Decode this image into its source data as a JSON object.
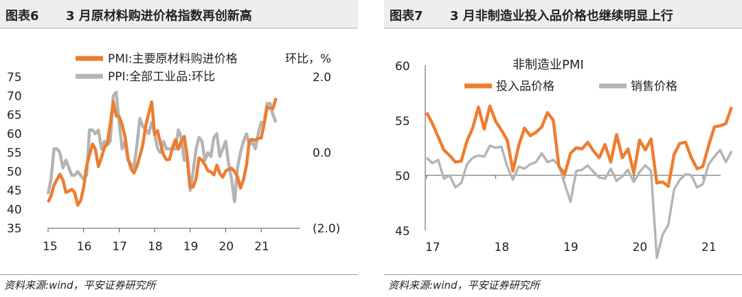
{
  "colors": {
    "orange": "#ED7D31",
    "gray": "#B4B4B4",
    "red_tick": "#E0201B",
    "axis": "#555555"
  },
  "left": {
    "fig_label": "图表6",
    "title": "3 月原材料购进价格指数再创新高",
    "source": "资料来源:wind，平安证券研究所"
  },
  "right": {
    "fig_label": "图表7",
    "title": "3 月非制造业投入品价格也继续明显上行",
    "source": "资料来源:wind，平安证券研究所"
  },
  "chart_data": [
    {
      "type": "line",
      "title": "",
      "ylabel_right": "环比，%",
      "legend_placement": "top",
      "ylim": [
        35,
        75
      ],
      "yticks": [
        "75",
        "70",
        "65",
        "60",
        "55",
        "50",
        "45",
        "40",
        "35"
      ],
      "y2lim": [
        -2.0,
        2.0
      ],
      "y2ticks": [
        "2.0",
        "0.0",
        "(2.0)"
      ],
      "x_tick_labels": [
        "15",
        "16",
        "17",
        "18",
        "19",
        "20",
        "21"
      ],
      "series": [
        {
          "name": "PMI:主要原材料购进价格",
          "axis": "left",
          "start": "2015-01",
          "values": [
            41.9,
            43.5,
            46.4,
            47.9,
            49.3,
            47.8,
            44.5,
            44.8,
            45.3,
            44.4,
            41.1,
            42.3,
            45.7,
            51.4,
            54.4,
            57.3,
            55.9,
            51.3,
            53.7,
            56.3,
            57.5,
            62.6,
            68.5,
            64.7,
            64.6,
            62.4,
            59.3,
            53.6,
            50.8,
            49.6,
            51.4,
            54.1,
            57.1,
            62.2,
            65.4,
            68.4,
            59.8,
            60.8,
            57.3,
            54.4,
            53.1,
            53.2,
            56.3,
            58.4,
            55.9,
            58.1,
            59.3,
            53.9,
            46.0,
            45.9,
            48.1,
            53.6,
            53.0,
            51.8,
            50.2,
            49.9,
            49.1,
            51.7,
            49.5,
            48.5,
            50.1,
            50.6,
            50.9,
            50.0,
            48.6,
            45.6,
            47.9,
            51.6,
            58.3,
            58.5,
            58.3,
            58.8,
            58.9,
            62.6,
            67.1,
            66.7,
            66.7,
            69.4
          ]
        },
        {
          "name": "PPI:全部工业品:环比",
          "axis": "right",
          "start": "2015-01",
          "values": [
            -1.1,
            -0.7,
            0.1,
            0.1,
            0.0,
            -0.4,
            -0.2,
            -0.4,
            -0.6,
            -0.6,
            -0.5,
            -0.6,
            -0.7,
            -0.6,
            0.6,
            0.6,
            0.5,
            0.6,
            0.1,
            0.3,
            0.2,
            0.3,
            1.5,
            1.6,
            0.8,
            0.1,
            0.3,
            -0.2,
            -0.3,
            -0.4,
            0.2,
            0.9,
            0.7,
            0.6,
            0.5,
            0.8,
            0.5,
            0.1,
            0.0,
            0.3,
            0.1,
            0.1,
            0.1,
            0.1,
            0.6,
            0.4,
            -0.2,
            -0.2,
            -1.0,
            -0.5,
            0.1,
            0.4,
            0.3,
            -0.2,
            0.0,
            -0.1,
            0.4,
            0.5,
            -0.1,
            0.1,
            0.3,
            -0.3,
            -0.7,
            -1.3,
            -0.4,
            0.0,
            0.3,
            0.5,
            0.2,
            0.3,
            0.1,
            0.5,
            0.8,
            0.8,
            1.3,
            1.3,
            1.0,
            0.8
          ]
        }
      ]
    },
    {
      "type": "line",
      "title": "非制造业PMI",
      "legend_placement": "top",
      "ylim": [
        45,
        60
      ],
      "yticks": [
        "60",
        "55",
        "50",
        "45"
      ],
      "x_tick_labels": [
        "17",
        "18",
        "19",
        "20",
        "21"
      ],
      "series": [
        {
          "name": "投入品价格",
          "start": "2017-01",
          "values": [
            55.7,
            54.7,
            53.5,
            52.3,
            51.8,
            51.2,
            51.3,
            53.1,
            54.3,
            56.2,
            54.2,
            56.3,
            54.9,
            54.1,
            53.2,
            50.4,
            52.7,
            54.3,
            53.6,
            53.9,
            54.4,
            55.7,
            55.0,
            50.8,
            50.1,
            52.0,
            52.5,
            52.4,
            53.0,
            52.2,
            51.6,
            52.8,
            51.2,
            53.7,
            51.6,
            52.4,
            50.2,
            53.2,
            52.3,
            53.3,
            49.3,
            49.4,
            49.0,
            51.9,
            52.9,
            53.0,
            51.6,
            50.6,
            50.8,
            52.7,
            54.4,
            54.5,
            54.7,
            56.2
          ]
        },
        {
          "name": "销售价格",
          "start": "2017-01",
          "values": [
            51.6,
            51.1,
            51.4,
            49.7,
            50.0,
            48.9,
            49.3,
            51.0,
            51.6,
            51.8,
            51.7,
            52.7,
            52.5,
            52.6,
            50.8,
            49.6,
            50.8,
            50.6,
            51.0,
            51.2,
            52.0,
            51.2,
            51.4,
            50.9,
            49.2,
            47.6,
            50.4,
            50.5,
            50.9,
            50.3,
            49.8,
            49.7,
            50.6,
            49.5,
            49.9,
            50.5,
            49.4,
            50.3,
            50.9,
            50.4,
            42.5,
            44.6,
            45.5,
            48.7,
            49.6,
            50.1,
            50.0,
            48.9,
            49.2,
            51.0,
            51.7,
            52.3,
            51.2,
            52.2
          ]
        }
      ]
    }
  ]
}
